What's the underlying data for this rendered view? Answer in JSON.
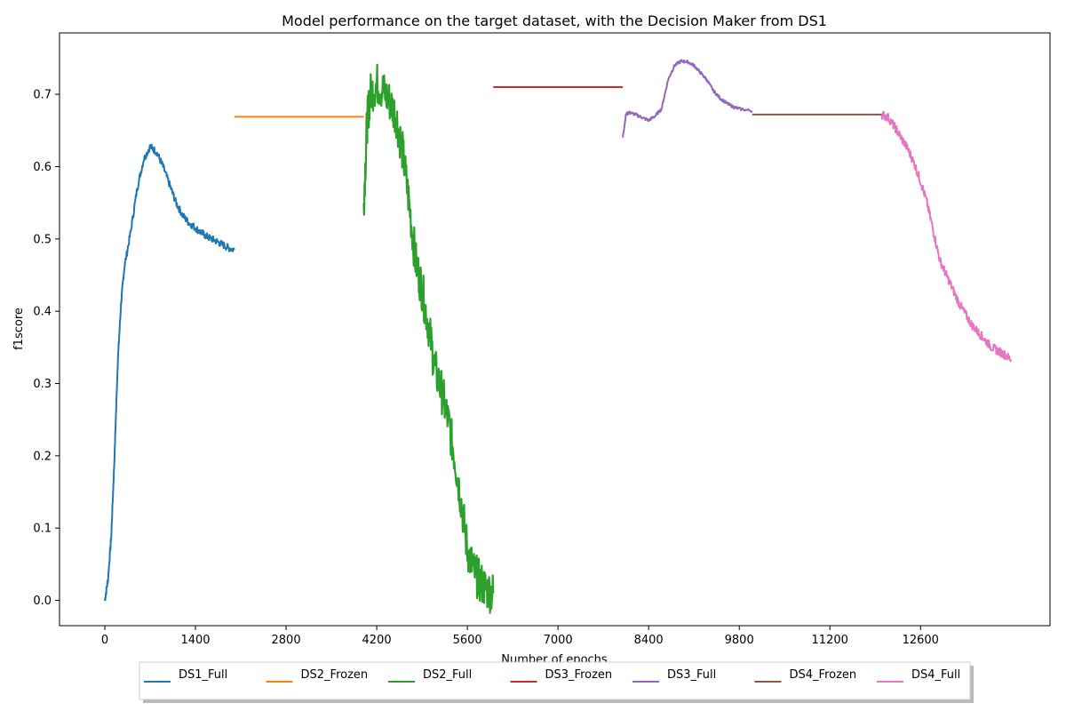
{
  "chart_data": {
    "type": "line",
    "title": "Model performance on the target dataset, with the Decision Maker from DS1",
    "xlabel": "Number of epochs",
    "ylabel": "f1score",
    "xlim": [
      -700,
      14600
    ],
    "ylim": [
      -0.035,
      0.785
    ],
    "xticks": [
      0,
      1400,
      2800,
      4200,
      5600,
      7000,
      8400,
      9800,
      11200,
      12600
    ],
    "xtick_labels": [
      "0",
      "1400",
      "2800",
      "4200",
      "5600",
      "7000",
      "8400",
      "9800",
      "11200",
      "12600"
    ],
    "yticks": [
      0.0,
      0.1,
      0.2,
      0.3,
      0.4,
      0.5,
      0.6,
      0.7
    ],
    "ytick_labels": [
      "0.0",
      "0.1",
      "0.2",
      "0.3",
      "0.4",
      "0.5",
      "0.6",
      "0.7"
    ],
    "grid": false,
    "legend_position": "bottom-center-below-axes",
    "series": [
      {
        "name": "DS1_Full",
        "color": "#1f77b4",
        "noise": 0.005,
        "x": [
          0,
          50,
          100,
          150,
          200,
          250,
          300,
          400,
          500,
          600,
          700,
          800,
          900,
          1000,
          1100,
          1200,
          1300,
          1400,
          1500,
          1600,
          1700,
          1800,
          1900,
          2000
        ],
        "y": [
          0.0,
          0.03,
          0.09,
          0.2,
          0.33,
          0.41,
          0.46,
          0.51,
          0.57,
          0.61,
          0.628,
          0.62,
          0.6,
          0.575,
          0.55,
          0.533,
          0.522,
          0.515,
          0.508,
          0.502,
          0.498,
          0.493,
          0.488,
          0.485
        ]
      },
      {
        "name": "DS2_Frozen",
        "color": "#ff7f0e",
        "noise": 0,
        "x": [
          2000,
          4000
        ],
        "y": [
          0.669,
          0.669
        ]
      },
      {
        "name": "DS2_Full",
        "color": "#2ca02c",
        "noise": 0.03,
        "x": [
          4000,
          4050,
          4100,
          4200,
          4300,
          4400,
          4500,
          4600,
          4700,
          4800,
          4900,
          5000,
          5100,
          5200,
          5300,
          5400,
          5500,
          5600,
          5700,
          5800,
          5900,
          6000
        ],
        "y": [
          0.55,
          0.66,
          0.7,
          0.715,
          0.705,
          0.69,
          0.67,
          0.62,
          0.55,
          0.47,
          0.43,
          0.38,
          0.32,
          0.29,
          0.25,
          0.2,
          0.14,
          0.07,
          0.04,
          0.025,
          0.015,
          0.01
        ]
      },
      {
        "name": "DS3_Frozen",
        "color": "#d62728",
        "noise": 0,
        "x": [
          6000,
          8000
        ],
        "y": [
          0.71,
          0.71
        ]
      },
      {
        "name": "DS3_Full",
        "color": "#9467bd",
        "noise": 0.002,
        "x": [
          8000,
          8050,
          8100,
          8200,
          8300,
          8400,
          8500,
          8600,
          8700,
          8800,
          8900,
          9000,
          9100,
          9200,
          9300,
          9400,
          9500,
          9600,
          9700,
          9800,
          10000
        ],
        "y": [
          0.64,
          0.672,
          0.675,
          0.672,
          0.668,
          0.664,
          0.67,
          0.68,
          0.72,
          0.74,
          0.746,
          0.745,
          0.74,
          0.73,
          0.72,
          0.705,
          0.695,
          0.688,
          0.683,
          0.68,
          0.677
        ]
      },
      {
        "name": "DS4_Frozen",
        "color": "#8c564b",
        "noise": 0,
        "x": [
          10000,
          12000
        ],
        "y": [
          0.672,
          0.672
        ]
      },
      {
        "name": "DS4_Full",
        "color": "#e377c2",
        "noise": 0.006,
        "x": [
          12000,
          12100,
          12200,
          12300,
          12400,
          12500,
          12600,
          12700,
          12800,
          12900,
          13000,
          13100,
          13200,
          13300,
          13400,
          13500,
          13600,
          13700,
          13800,
          13900,
          14000
        ],
        "y": [
          0.672,
          0.668,
          0.655,
          0.64,
          0.625,
          0.605,
          0.58,
          0.55,
          0.51,
          0.47,
          0.45,
          0.43,
          0.41,
          0.395,
          0.38,
          0.37,
          0.36,
          0.35,
          0.345,
          0.34,
          0.333
        ]
      }
    ]
  }
}
